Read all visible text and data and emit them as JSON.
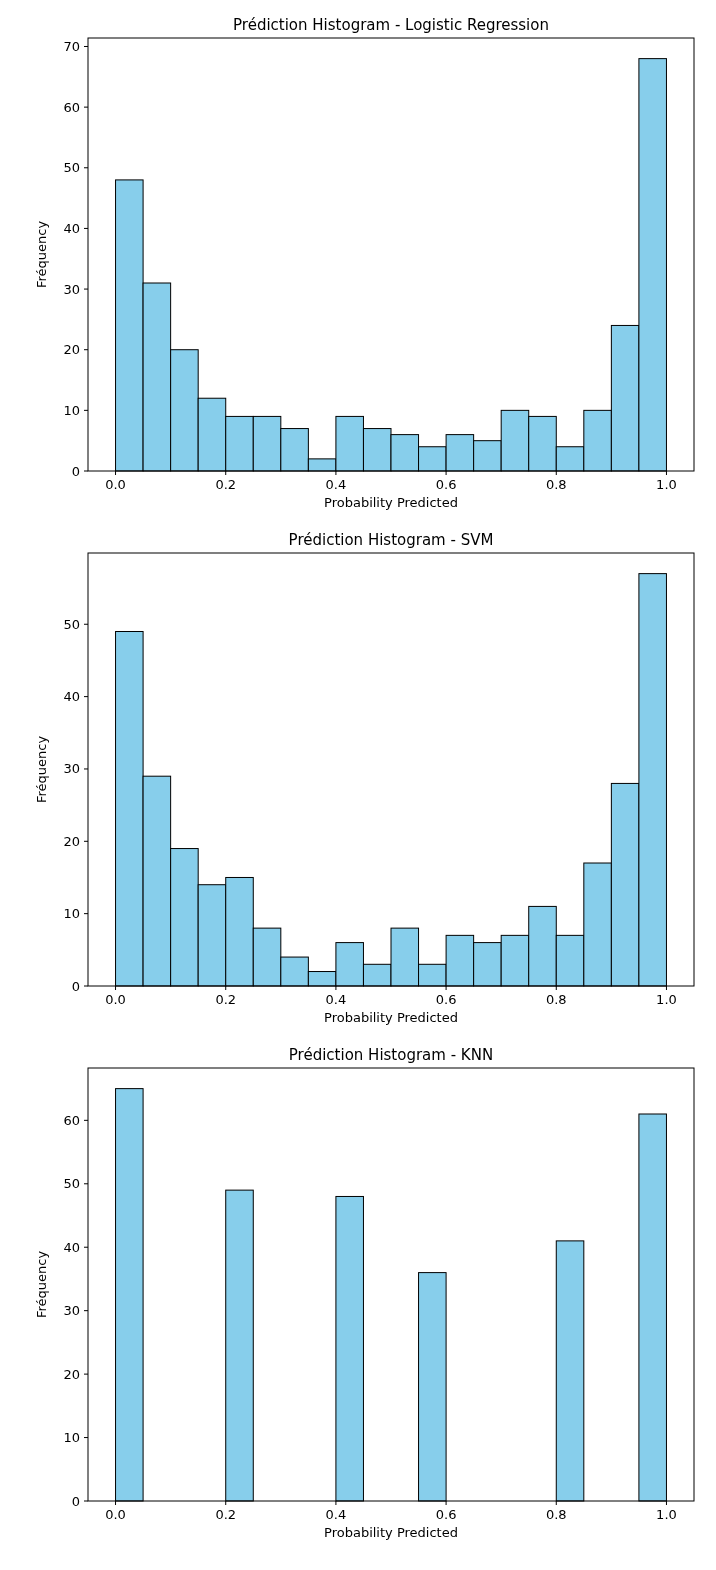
{
  "chart_data": [
    {
      "type": "histogram",
      "title": "Prédiction Histogram - Logistic Regression",
      "xlabel": "Probability Predicted",
      "ylabel": "Fréquency",
      "color": "#87ceeb",
      "bins": [
        0,
        0.05,
        0.1,
        0.15,
        0.2,
        0.25,
        0.3,
        0.35,
        0.4,
        0.45,
        0.5,
        0.55,
        0.6,
        0.65,
        0.7,
        0.75,
        0.8,
        0.85,
        0.9,
        0.95,
        1
      ],
      "values": [
        48,
        31,
        20,
        12,
        9,
        9,
        7,
        2,
        9,
        7,
        6,
        4,
        6,
        5,
        10,
        9,
        4,
        10,
        24,
        68
      ],
      "xlim": [
        -0.05,
        1.05
      ],
      "xticks": [
        {
          "value": 0,
          "label": "0.0"
        },
        {
          "value": 0.2,
          "label": "0.2"
        },
        {
          "value": 0.4,
          "label": "0.4"
        },
        {
          "value": 0.6,
          "label": "0.6"
        },
        {
          "value": 0.8,
          "label": "0.8"
        },
        {
          "value": 1,
          "label": "1.0"
        }
      ],
      "ylim": [
        0,
        71.4
      ],
      "yticks": [
        0,
        10,
        20,
        30,
        40,
        50,
        60,
        70
      ]
    },
    {
      "type": "histogram",
      "title": "Prédiction Histogram - SVM",
      "xlabel": "Probability Predicted",
      "ylabel": "Fréquency",
      "color": "#87ceeb",
      "bins": [
        0,
        0.05,
        0.1,
        0.15,
        0.2,
        0.25,
        0.3,
        0.35,
        0.4,
        0.45,
        0.5,
        0.55,
        0.6,
        0.65,
        0.7,
        0.75,
        0.8,
        0.85,
        0.9,
        0.95,
        1
      ],
      "values": [
        49,
        29,
        19,
        14,
        15,
        8,
        4,
        2,
        6,
        3,
        8,
        3,
        7,
        6,
        7,
        11,
        7,
        17,
        28,
        57
      ],
      "xlim": [
        -0.05,
        1.05
      ],
      "xticks": [
        {
          "value": 0,
          "label": "0.0"
        },
        {
          "value": 0.2,
          "label": "0.2"
        },
        {
          "value": 0.4,
          "label": "0.4"
        },
        {
          "value": 0.6,
          "label": "0.6"
        },
        {
          "value": 0.8,
          "label": "0.8"
        },
        {
          "value": 1,
          "label": "1.0"
        }
      ],
      "ylim": [
        0,
        59.85
      ],
      "yticks": [
        0,
        10,
        20,
        30,
        40,
        50
      ]
    },
    {
      "type": "histogram",
      "title": "Prédiction Histogram - KNN",
      "xlabel": "Probability Predicted",
      "ylabel": "Fréquency",
      "color": "#87ceeb",
      "bins": [
        0,
        0.05,
        0.1,
        0.15,
        0.2,
        0.25,
        0.3,
        0.35,
        0.4,
        0.45,
        0.5,
        0.55,
        0.6,
        0.65,
        0.7,
        0.75,
        0.8,
        0.85,
        0.9,
        0.95,
        1
      ],
      "values": [
        65,
        0,
        0,
        0,
        49,
        0,
        0,
        0,
        48,
        0,
        0,
        36,
        0,
        0,
        0,
        0,
        41,
        0,
        0,
        61
      ],
      "xlim": [
        -0.05,
        1.05
      ],
      "xticks": [
        {
          "value": 0,
          "label": "0.0"
        },
        {
          "value": 0.2,
          "label": "0.2"
        },
        {
          "value": 0.4,
          "label": "0.4"
        },
        {
          "value": 0.6,
          "label": "0.6"
        },
        {
          "value": 0.8,
          "label": "0.8"
        },
        {
          "value": 1,
          "label": "1.0"
        }
      ],
      "ylim": [
        0,
        68.25
      ],
      "yticks": [
        0,
        10,
        20,
        30,
        40,
        50,
        60
      ]
    }
  ]
}
